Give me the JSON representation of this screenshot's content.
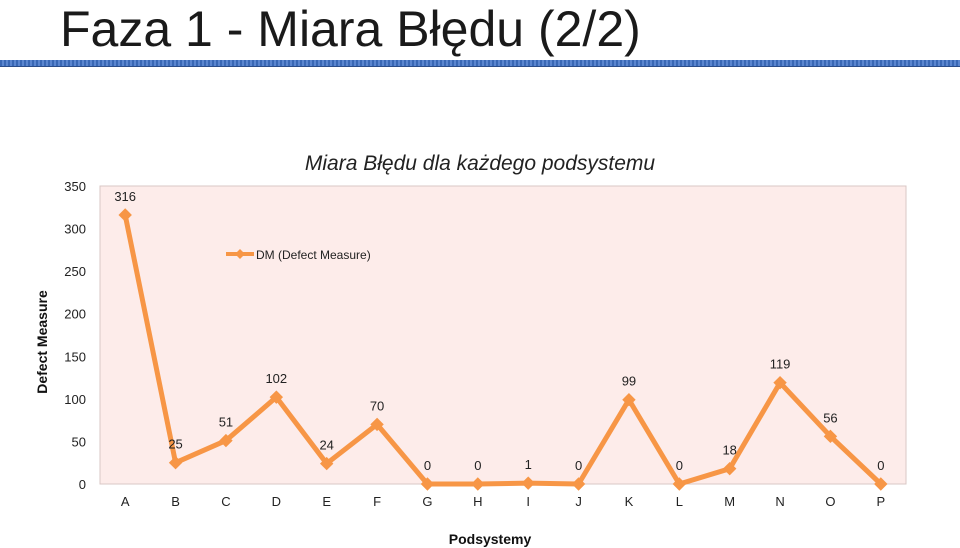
{
  "slide": {
    "title": "Faza 1 - Miara Błędu (2/2)"
  },
  "chart_data": {
    "type": "line",
    "title": "Miara Błędu dla każdego podsystemu",
    "xlabel": "Podsystemy",
    "ylabel": "Defect Measure",
    "categories": [
      "A",
      "B",
      "C",
      "D",
      "E",
      "F",
      "G",
      "H",
      "I",
      "J",
      "K",
      "L",
      "M",
      "N",
      "O",
      "P"
    ],
    "series": [
      {
        "name": "DM (Defect Measure)",
        "values": [
          316,
          25,
          51,
          102,
          24,
          70,
          0,
          0,
          1,
          0,
          99,
          0,
          18,
          119,
          56,
          0
        ],
        "color": "#f79646"
      }
    ],
    "ylim": [
      0,
      350
    ],
    "yticks": [
      0,
      50,
      100,
      150,
      200,
      250,
      300,
      350
    ],
    "legend_position": "top-left inside plot",
    "grid": false,
    "plot_background": "#fdecea"
  }
}
